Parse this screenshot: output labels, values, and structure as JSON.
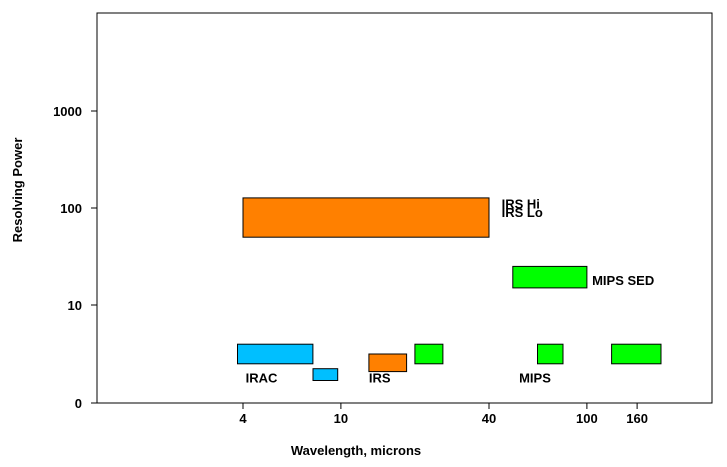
{
  "chart_data": {
    "type": "bar",
    "xlabel": "Wavelength, microns",
    "ylabel": "Resolving Power",
    "x_scale": "log",
    "x_ticks": [
      {
        "value": 4,
        "label": "4"
      },
      {
        "value": 10,
        "label": "10"
      },
      {
        "value": 40,
        "label": "40"
      },
      {
        "value": 100,
        "label": "100"
      },
      {
        "value": 160,
        "label": "160"
      }
    ],
    "y_ticks": [
      {
        "value": 0,
        "label": "0"
      },
      {
        "value": 10,
        "label": "10"
      },
      {
        "value": 100,
        "label": "100"
      },
      {
        "value": 1000,
        "label": "1000"
      }
    ],
    "grid": false,
    "series": [
      {
        "instrument": "IRS",
        "color": "#ff8000",
        "x_min": 9,
        "x_max": 40,
        "y_min": 90,
        "y_max": 125
      },
      {
        "instrument": "IRS",
        "color": "#ff8000",
        "x_min": 4,
        "x_max": 40,
        "y_min": 50,
        "y_max": 127
      },
      {
        "instrument": "MIPS",
        "color": "#00ff00",
        "x_min": 50,
        "x_max": 100,
        "y_min": 15,
        "y_max": 25
      },
      {
        "instrument": "IRAC",
        "color": "#00bfff",
        "x_min": 3.8,
        "x_max": 7.7,
        "y_min": 4,
        "y_max": 6
      },
      {
        "instrument": "IRAC",
        "color": "#00bfff",
        "x_min": 7.7,
        "x_max": 9.7,
        "y_min": 2.3,
        "y_max": 3.5
      },
      {
        "instrument": "IRS",
        "color": "#ff8000",
        "x_min": 13,
        "x_max": 18.5,
        "y_min": 3.2,
        "y_max": 5
      },
      {
        "instrument": "MIPS",
        "color": "#00ff00",
        "x_min": 20,
        "x_max": 26,
        "y_min": 4,
        "y_max": 6
      },
      {
        "instrument": "MIPS",
        "color": "#00ff00",
        "x_min": 63,
        "x_max": 80,
        "y_min": 4,
        "y_max": 6
      },
      {
        "instrument": "MIPS",
        "color": "#00ff00",
        "x_min": 126,
        "x_max": 200,
        "y_min": 4,
        "y_max": 6
      }
    ],
    "annotations": [
      {
        "text": "IRS Hi",
        "x": 45,
        "y": 111
      },
      {
        "text": "IRS Lo",
        "x": 45,
        "y": 91
      },
      {
        "text": "MIPS SED",
        "x": 105,
        "y": 18
      },
      {
        "text": "IRAC",
        "x": 4.1,
        "y": 2.6
      },
      {
        "text": "IRS",
        "x": 13,
        "y": 2.6
      },
      {
        "text": "MIPS",
        "x": 53,
        "y": 2.6
      }
    ]
  }
}
